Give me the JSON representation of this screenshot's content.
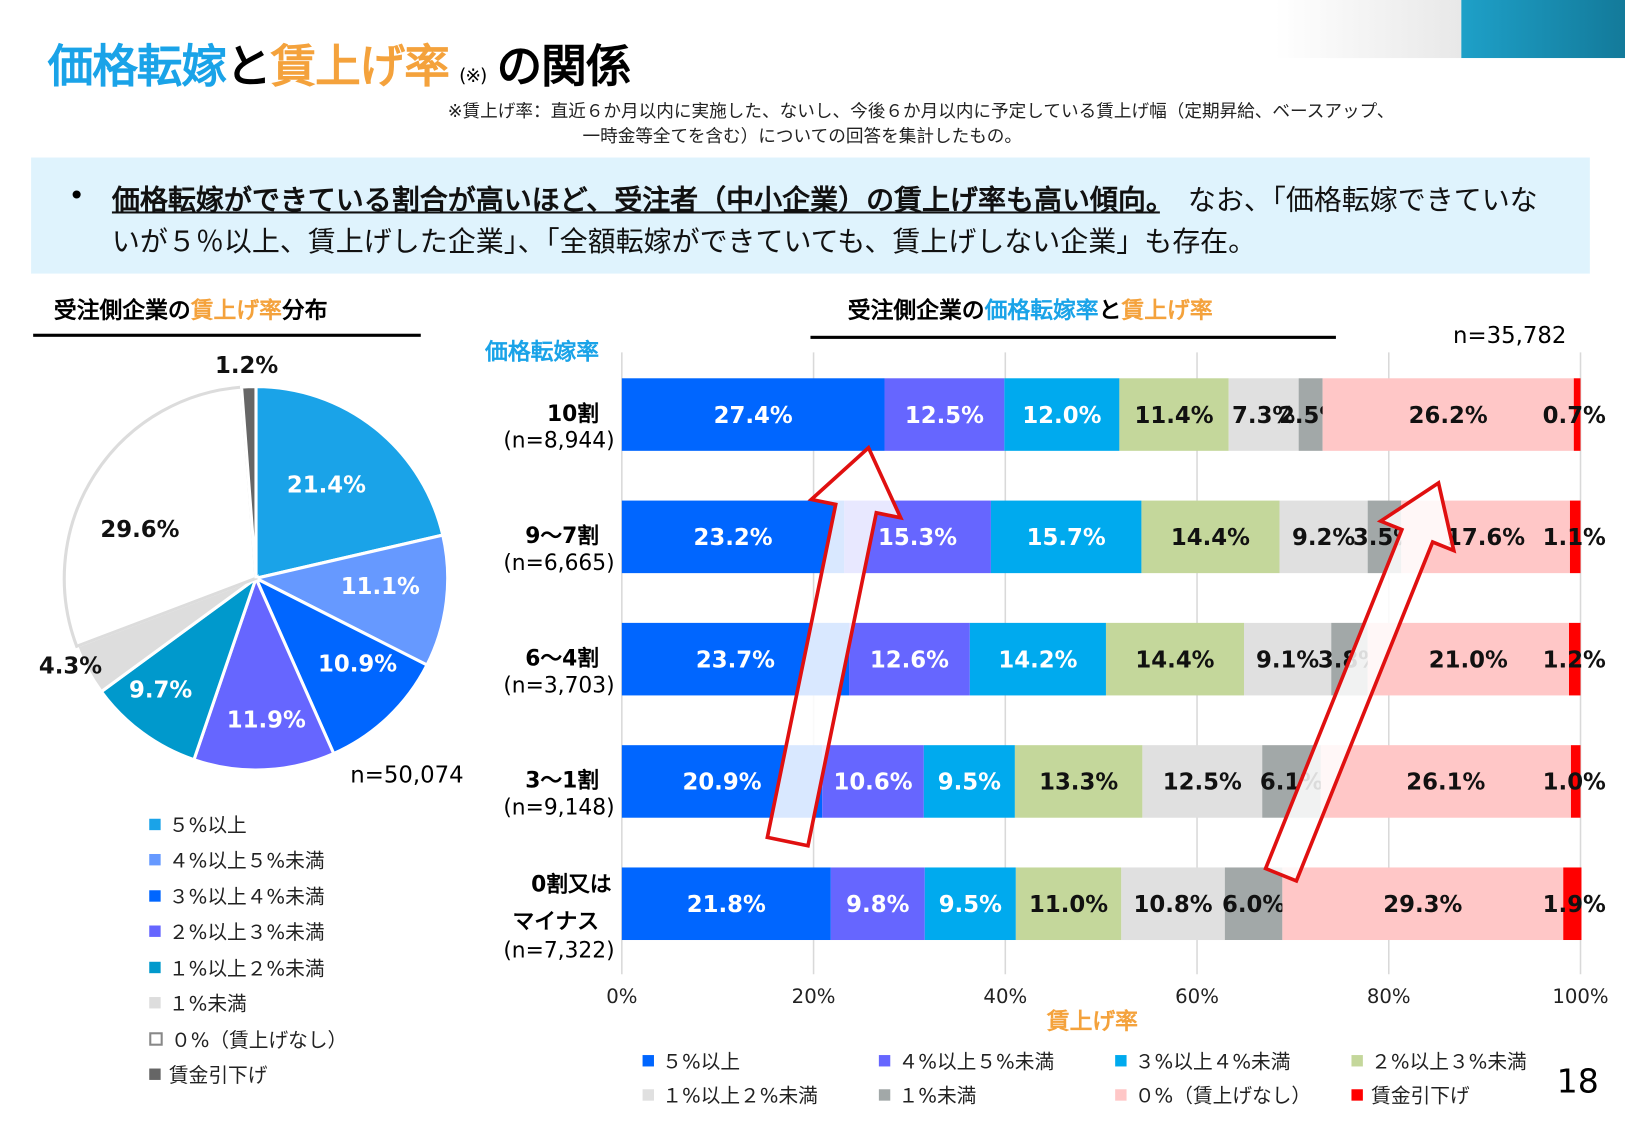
{
  "header": {
    "title_part1": "価格転嫁",
    "title_part2": "と",
    "title_part3": "賃上げ率",
    "title_note_mark": "(※)",
    "title_part4": "の関係",
    "note_line1": "※賃上げ率：直近６か月以内に実施した、ないし、今後６か月以内に予定している賃上げ幅（定期昇給、ベースアップ、",
    "note_line2": "一時金等全てを含む）についての回答を集計したもの。"
  },
  "summary": {
    "bold": "価格転嫁ができている割合が高いほど、受注者（中小企業）の賃上げ率も高い傾向。",
    "rest": "　なお、「価格転嫁できていないが５％以上、賃上げした企業」、「全額転嫁ができていても、賃上げしない企業」も存在。"
  },
  "page_number": "18",
  "colors": [
    "#0066ff",
    "#6666ff",
    "#00aaee",
    "#c4d79b",
    "#e0e0e0",
    "#a2a8a8",
    "#ffc7c7",
    "#ff0000"
  ],
  "chart_data": [
    {
      "type": "pie",
      "title_part1": "受注側企業の",
      "title_part2": "賃上げ率",
      "title_part3": "分布",
      "n_label": "n=50,074",
      "labels": [
        "５%以上",
        "４%以上５%未満",
        "３%以上４%未満",
        "２%以上３%未満",
        "１%以上２%未満",
        "１%未満",
        "０%（賃上げなし）",
        "賃金引下げ"
      ],
      "values": [
        21.4,
        11.1,
        10.9,
        11.9,
        9.7,
        4.3,
        29.6,
        1.2
      ],
      "value_labels": [
        "21.4%",
        "11.1%",
        "10.9%",
        "11.9%",
        "9.7%",
        "4.3%",
        "29.6%",
        "1.2%"
      ],
      "colors": [
        "#1aa3e8",
        "#6699ff",
        "#0066ff",
        "#6666ff",
        "#0099cc",
        "#dddddd",
        "#ffffff",
        "#666666"
      ]
    },
    {
      "type": "bar",
      "stacked": true,
      "orientation": "horizontal",
      "title_part1": "受注側企業の",
      "title_part2": "価格転嫁率",
      "title_part3": "と",
      "title_part4": "賃上げ率",
      "n_label": "n=35,782",
      "ylabel": "価格転嫁率",
      "xlabel": "賃上げ率",
      "xlim": [
        0,
        100
      ],
      "xticks": [
        "0%",
        "20%",
        "40%",
        "60%",
        "80%",
        "100%"
      ],
      "categories": [
        {
          "label": "10割",
          "n": "(n=8,944)"
        },
        {
          "label": "9～7割",
          "n": "(n=6,665)"
        },
        {
          "label": "6～4割",
          "n": "(n=3,703)"
        },
        {
          "label": "3～1割",
          "n": "(n=9,148)"
        },
        {
          "label": "0割又は",
          "label2": "マイナス",
          "n": "(n=7,322)"
        }
      ],
      "series": [
        {
          "name": "５%以上",
          "values": [
            27.4,
            23.2,
            23.7,
            20.9,
            21.8
          ]
        },
        {
          "name": "４%以上５%未満",
          "values": [
            12.5,
            15.3,
            12.6,
            10.6,
            9.8
          ]
        },
        {
          "name": "３%以上４%未満",
          "values": [
            12.0,
            15.7,
            14.2,
            9.5,
            9.5
          ]
        },
        {
          "name": "２%以上３%未満",
          "values": [
            11.4,
            14.4,
            14.4,
            13.3,
            11.0
          ]
        },
        {
          "name": "１%以上２%未満",
          "values": [
            7.3,
            9.2,
            9.1,
            12.5,
            10.8
          ]
        },
        {
          "name": "１%未満",
          "values": [
            2.5,
            3.5,
            3.8,
            6.1,
            6.0
          ]
        },
        {
          "name": "０%（賃上げなし）",
          "values": [
            26.2,
            17.6,
            21.0,
            26.1,
            29.3
          ]
        },
        {
          "name": "賃金引下げ",
          "values": [
            0.7,
            1.1,
            1.2,
            1.0,
            1.9
          ]
        }
      ]
    }
  ]
}
